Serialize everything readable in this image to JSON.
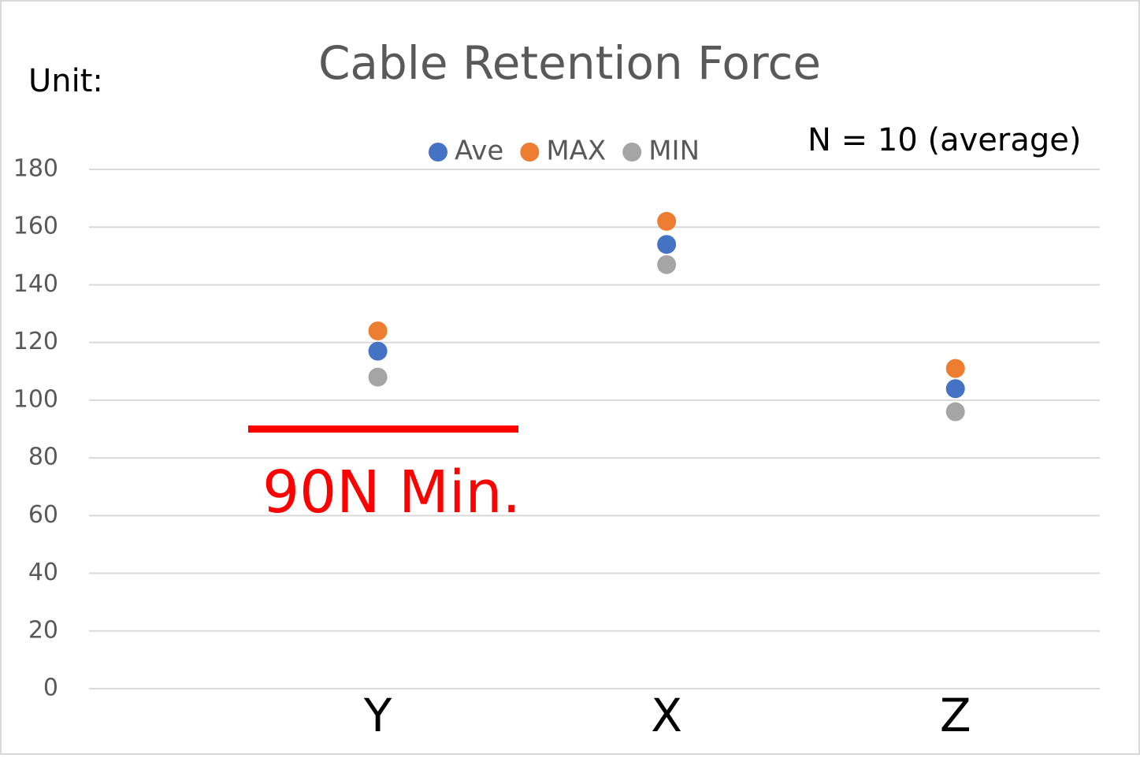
{
  "chart_data": {
    "type": "dot",
    "title": "Cable Retention Force",
    "annotations": [
      "Unit:",
      "N = 10 (average)"
    ],
    "reference_line": {
      "value": 90,
      "label": "90N Min.",
      "color": "#ff0000"
    },
    "categories": [
      "Y",
      "X",
      "Z"
    ],
    "series": [
      {
        "name": "Ave",
        "color": "#4472c4",
        "values": [
          117,
          154,
          104
        ]
      },
      {
        "name": "MAX",
        "color": "#ed7d31",
        "values": [
          124,
          162,
          111
        ]
      },
      {
        "name": "MIN",
        "color": "#a5a5a5",
        "values": [
          108,
          147,
          96
        ]
      }
    ],
    "ylim": [
      0,
      180
    ],
    "yticks": [
      0,
      20,
      40,
      60,
      80,
      100,
      120,
      140,
      160,
      180
    ],
    "grid": true,
    "legend": "top"
  }
}
